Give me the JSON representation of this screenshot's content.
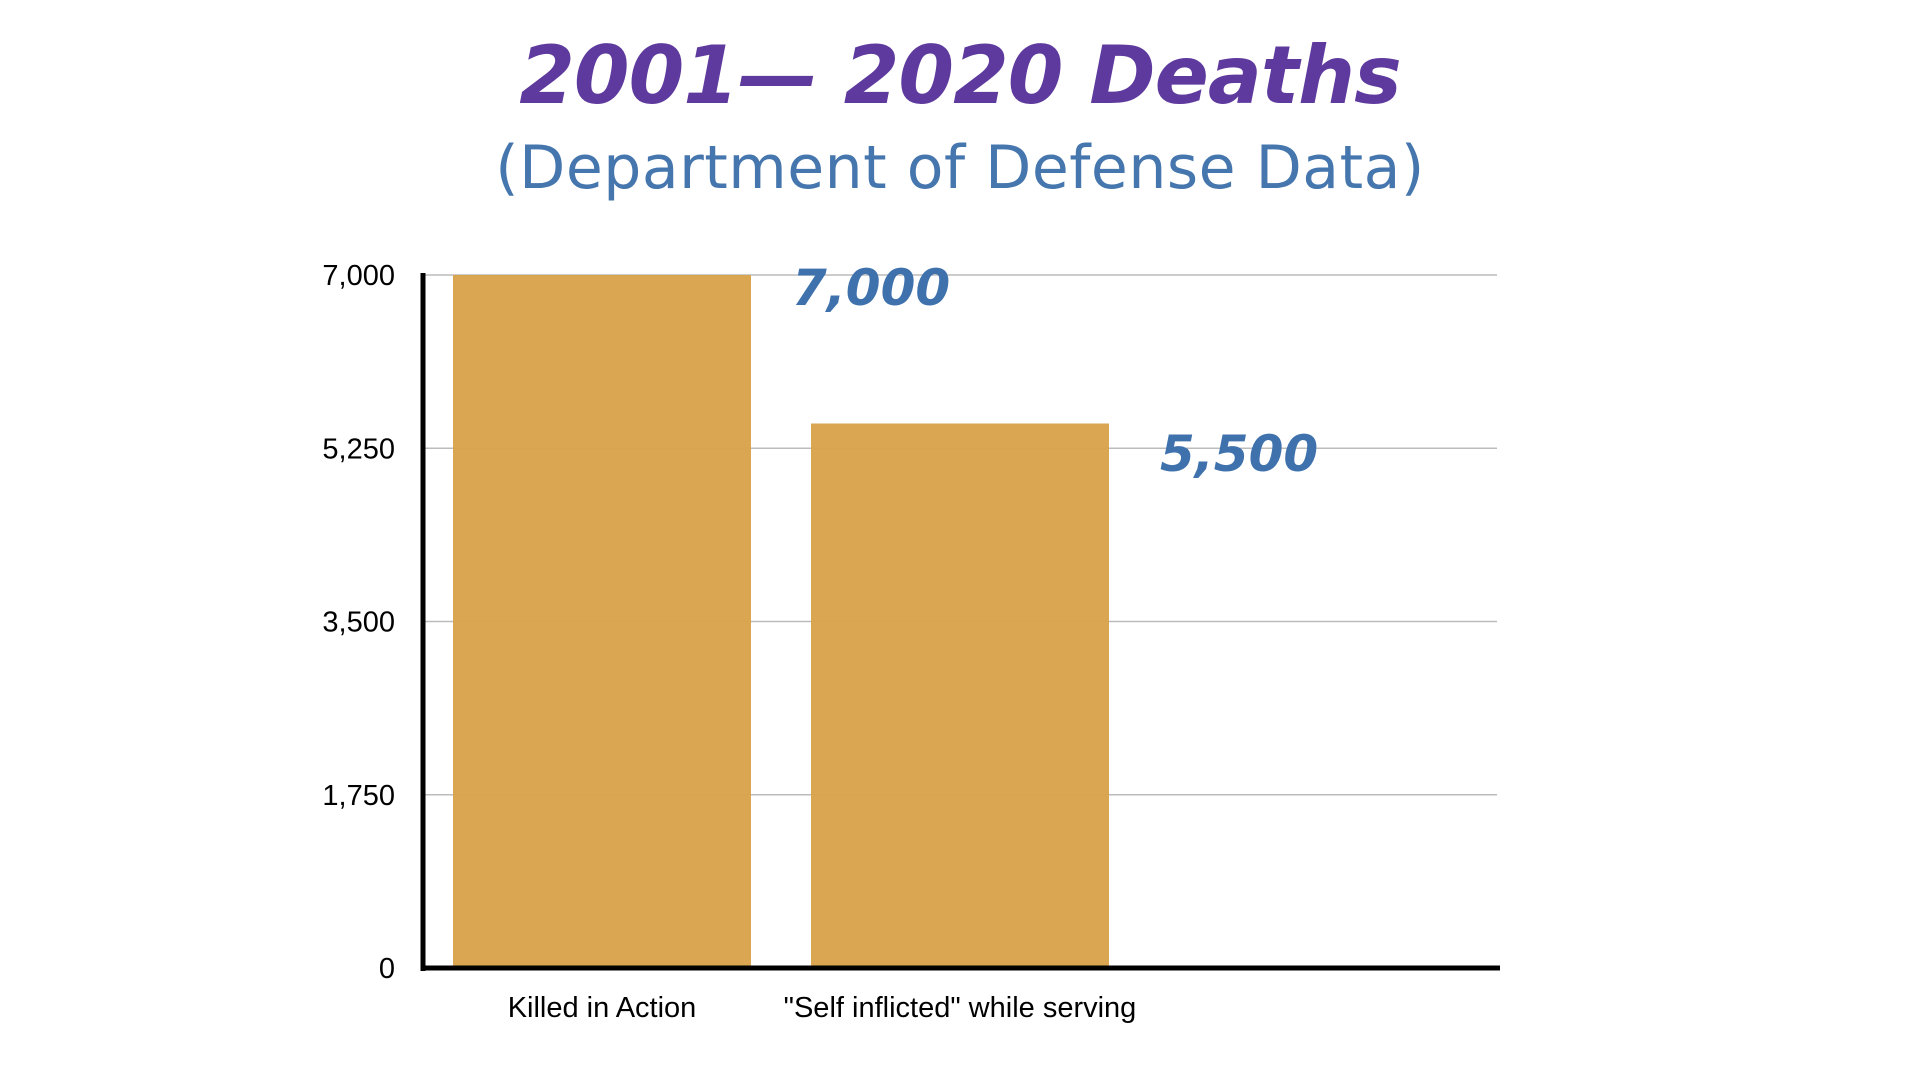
{
  "title": "2001— 2020 Deaths",
  "subtitle": "(Department of Defense Data)",
  "colors": {
    "title": "#5e3a9e",
    "subtitle": "#4576ad",
    "bar": "#d9a24a",
    "data_label": "#3f72ad",
    "gridline": "#bcbcbc",
    "axis": "#000000"
  },
  "chart_data": {
    "type": "bar",
    "title": "2001— 2020 Deaths",
    "subtitle": "(Department of Defense Data)",
    "categories": [
      "Killed in Action",
      "\"Self inflicted\" while serving"
    ],
    "values": [
      7000,
      5500
    ],
    "data_labels": [
      "7,000",
      "5,500"
    ],
    "xlabel": "",
    "ylabel": "",
    "ylim": [
      0,
      7000
    ],
    "yticks": [
      0,
      1750,
      3500,
      5250,
      7000
    ],
    "ytick_labels": [
      "0",
      "1,750",
      "3,500",
      "5,250",
      "7,000"
    ],
    "grid": true,
    "legend": "none"
  }
}
